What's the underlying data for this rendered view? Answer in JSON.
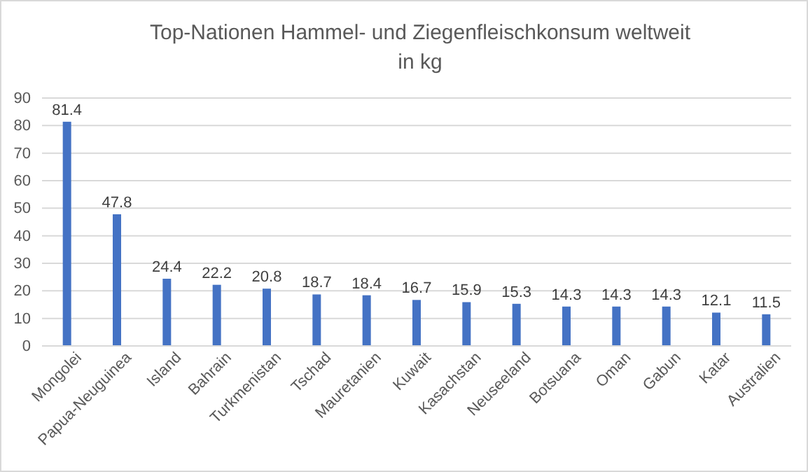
{
  "chart_data": {
    "type": "bar",
    "title": "Top-Nationen Hammel- und Ziegenfleischkonsum weltweit\nin kg",
    "categories": [
      "Mongolei",
      "Papua-Neuguinea",
      "Island",
      "Bahrain",
      "Turkmenistan",
      "Tschad",
      "Mauretanien",
      "Kuwait",
      "Kasachstan",
      "Neuseeland",
      "Botsuana",
      "Oman",
      "Gabun",
      "Katar",
      "Australien"
    ],
    "values": [
      81.4,
      47.8,
      24.4,
      22.2,
      20.8,
      18.7,
      18.4,
      16.7,
      15.9,
      15.3,
      14.3,
      14.3,
      14.3,
      12.1,
      11.5
    ],
    "color": "#4472c4",
    "ylim": [
      0,
      90
    ],
    "yticks": [
      0,
      10,
      20,
      30,
      40,
      50,
      60,
      70,
      80,
      90
    ],
    "grid": "y",
    "data_labels": true
  }
}
